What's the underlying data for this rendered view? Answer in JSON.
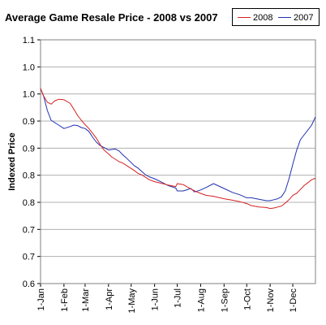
{
  "chart_data": {
    "type": "line",
    "title": "Average Game Resale Price - 2008 vs 2007",
    "xlabel": "",
    "ylabel": "Indexed Price",
    "x_ticks": [
      "1-Jan",
      "1-Feb",
      "1-Mar",
      "1-Apr",
      "1-May",
      "1-Jun",
      "1-Jul",
      "1-Aug",
      "1-Sep",
      "1-Oct",
      "1-Nov",
      "1-Dec"
    ],
    "y_ticks": [
      "1.1",
      "1.0",
      "1.0",
      "0.9",
      "0.9",
      "0.8",
      "0.8",
      "0.7",
      "0.7",
      "0.6"
    ],
    "ylim": [
      0.6,
      1.1
    ],
    "x_unit": "day of year",
    "xlim": [
      1,
      365
    ],
    "grid": "horizontal",
    "legend_position": "top-right",
    "series": [
      {
        "name": "2008",
        "color": "#d62020",
        "x": [
          1,
          5,
          10,
          15,
          20,
          25,
          32,
          40,
          45,
          50,
          55,
          60,
          65,
          70,
          75,
          80,
          85,
          91,
          95,
          100,
          105,
          110,
          115,
          121,
          125,
          130,
          135,
          140,
          145,
          152,
          160,
          170,
          180,
          182,
          190,
          200,
          205,
          213,
          220,
          230,
          244,
          255,
          265,
          274,
          280,
          290,
          300,
          305,
          310,
          315,
          320,
          325,
          330,
          335,
          340,
          345,
          350,
          355,
          360,
          365
        ],
        "y": [
          1.0,
          0.985,
          0.972,
          0.968,
          0.975,
          0.978,
          0.977,
          0.97,
          0.958,
          0.945,
          0.935,
          0.926,
          0.918,
          0.908,
          0.898,
          0.885,
          0.874,
          0.866,
          0.86,
          0.855,
          0.85,
          0.847,
          0.842,
          0.836,
          0.832,
          0.826,
          0.823,
          0.818,
          0.813,
          0.809,
          0.806,
          0.802,
          0.799,
          0.805,
          0.803,
          0.794,
          0.79,
          0.785,
          0.781,
          0.779,
          0.774,
          0.771,
          0.768,
          0.764,
          0.76,
          0.757,
          0.756,
          0.754,
          0.755,
          0.757,
          0.759,
          0.765,
          0.772,
          0.781,
          0.785,
          0.793,
          0.801,
          0.807,
          0.813,
          0.816
        ]
      },
      {
        "name": "2007",
        "color": "#2030b0",
        "x": [
          1,
          5,
          10,
          15,
          20,
          25,
          32,
          40,
          45,
          50,
          55,
          60,
          65,
          70,
          75,
          80,
          85,
          91,
          95,
          100,
          105,
          110,
          115,
          121,
          125,
          130,
          135,
          140,
          145,
          152,
          160,
          170,
          180,
          182,
          190,
          200,
          205,
          213,
          220,
          230,
          244,
          255,
          265,
          274,
          280,
          290,
          300,
          305,
          310,
          315,
          320,
          325,
          330,
          335,
          340,
          345,
          350,
          355,
          360,
          365
        ],
        "y": [
          1.0,
          0.985,
          0.955,
          0.935,
          0.93,
          0.925,
          0.918,
          0.922,
          0.925,
          0.924,
          0.92,
          0.918,
          0.912,
          0.9,
          0.89,
          0.883,
          0.879,
          0.874,
          0.875,
          0.876,
          0.872,
          0.864,
          0.857,
          0.848,
          0.842,
          0.837,
          0.83,
          0.823,
          0.819,
          0.815,
          0.809,
          0.801,
          0.796,
          0.79,
          0.79,
          0.795,
          0.788,
          0.792,
          0.797,
          0.805,
          0.795,
          0.787,
          0.782,
          0.776,
          0.776,
          0.773,
          0.77,
          0.77,
          0.772,
          0.774,
          0.778,
          0.79,
          0.815,
          0.845,
          0.873,
          0.895,
          0.905,
          0.915,
          0.925,
          0.942
        ]
      }
    ]
  }
}
